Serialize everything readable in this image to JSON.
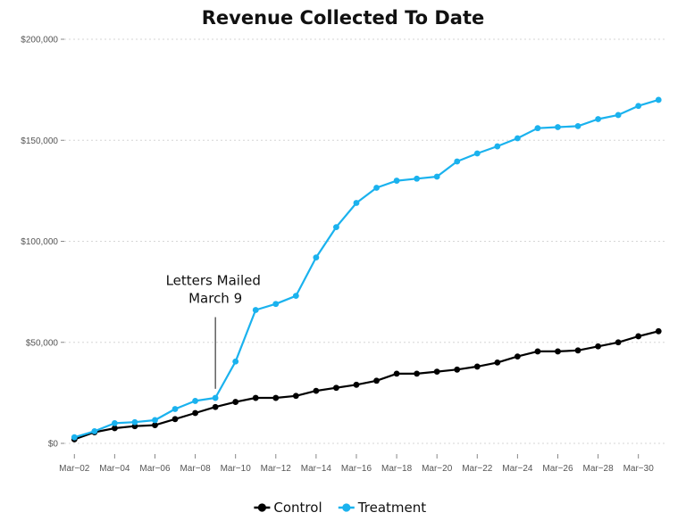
{
  "chart_data": {
    "type": "line",
    "title": "Revenue Collected To Date",
    "xlabel": "",
    "ylabel": "",
    "ylim": [
      0,
      200000
    ],
    "yticks": [
      0,
      50000,
      100000,
      150000,
      200000
    ],
    "ytick_labels": [
      "$0",
      "$50,000",
      "$100,000",
      "$150,000",
      "$200,000"
    ],
    "xtick_labels": [
      "Mar−02",
      "Mar−04",
      "Mar−06",
      "Mar−08",
      "Mar−10",
      "Mar−12",
      "Mar−14",
      "Mar−16",
      "Mar−18",
      "Mar−20",
      "Mar−22",
      "Mar−24",
      "Mar−26",
      "Mar−28",
      "Mar−30"
    ],
    "xtick_days": [
      2,
      4,
      6,
      8,
      10,
      12,
      14,
      16,
      18,
      20,
      22,
      24,
      26,
      28,
      30
    ],
    "xlim_days": [
      1.5,
      31.3
    ],
    "x_days": [
      2,
      3,
      4,
      5,
      6,
      7,
      8,
      9,
      10,
      11,
      12,
      13,
      14,
      15,
      16,
      17,
      18,
      19,
      20,
      21,
      22,
      23,
      24,
      25,
      26,
      27,
      28,
      29,
      30,
      31
    ],
    "grid": true,
    "legend_position": "bottom-center",
    "series": [
      {
        "name": "Control",
        "color": "#000000",
        "values": [
          2000,
          5500,
          7500,
          8500,
          9000,
          12000,
          15000,
          18000,
          20500,
          22500,
          22500,
          23500,
          26000,
          27500,
          29000,
          31000,
          34500,
          34500,
          35500,
          36500,
          38000,
          40000,
          43000,
          45500,
          45500,
          46000,
          48000,
          50000,
          53000,
          55500
        ]
      },
      {
        "name": "Treatment",
        "color": "#1ab2ee",
        "values": [
          3000,
          6000,
          10000,
          10500,
          11500,
          17000,
          21000,
          22500,
          40500,
          66000,
          69000,
          73000,
          92000,
          107000,
          119000,
          126500,
          130000,
          131000,
          132000,
          139500,
          143500,
          147000,
          151000,
          156000,
          156500,
          157000,
          160500,
          162500,
          167000,
          170000
        ]
      }
    ],
    "annotation": {
      "lines": [
        "Letters Mailed",
        "March 9"
      ],
      "x_day": 9,
      "y_from": 27000,
      "y_to": 66000
    }
  }
}
